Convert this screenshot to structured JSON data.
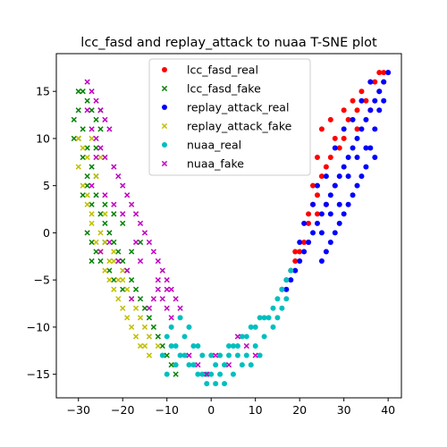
{
  "chart_data": {
    "type": "scatter",
    "title": "lcc_fasd and replay_attack to nuaa T-SNE plot",
    "xlabel": "",
    "ylabel": "",
    "xlim": [
      -35,
      43
    ],
    "ylim": [
      -17.5,
      19
    ],
    "xticks": [
      -30,
      -20,
      -10,
      0,
      10,
      20,
      30,
      40
    ],
    "yticks": [
      -15,
      -10,
      -5,
      0,
      5,
      10,
      15
    ],
    "grid": false,
    "legend_position": "top-center",
    "series": [
      {
        "name": "lcc_fasd_real",
        "color": "#ff0000",
        "marker": "circle",
        "points": [
          [
            19,
            -3
          ],
          [
            21,
            -1
          ],
          [
            22,
            2
          ],
          [
            23,
            5
          ],
          [
            24,
            8
          ],
          [
            25,
            11
          ],
          [
            27,
            12
          ],
          [
            30,
            13
          ],
          [
            32,
            14
          ],
          [
            34,
            15
          ],
          [
            36,
            16
          ],
          [
            38,
            17
          ],
          [
            39,
            17
          ],
          [
            40,
            17
          ],
          [
            33,
            11
          ],
          [
            29,
            9
          ],
          [
            26,
            7
          ],
          [
            24,
            4
          ],
          [
            22,
            1
          ],
          [
            20,
            -2
          ],
          [
            18,
            -4
          ],
          [
            17,
            -5
          ],
          [
            16,
            -6
          ],
          [
            28,
            10
          ],
          [
            31,
            12
          ],
          [
            35,
            14
          ],
          [
            37,
            16
          ],
          [
            39,
            16
          ],
          [
            23,
            3
          ],
          [
            25,
            6
          ],
          [
            27,
            8
          ],
          [
            30,
            10
          ],
          [
            22,
            -1
          ],
          [
            19,
            -2
          ],
          [
            33,
            13
          ],
          [
            36,
            13
          ],
          [
            38,
            15
          ],
          [
            26,
            3
          ],
          [
            28,
            5
          ],
          [
            24,
            2
          ]
        ]
      },
      {
        "name": "lcc_fasd_fake",
        "color": "#008000",
        "marker": "x",
        "points": [
          [
            -29,
            15
          ],
          [
            -28,
            14
          ],
          [
            -30,
            13
          ],
          [
            -31,
            12
          ],
          [
            -29,
            11
          ],
          [
            -27,
            13
          ],
          [
            -26,
            12
          ],
          [
            -25,
            11
          ],
          [
            -28,
            9
          ],
          [
            -27,
            7
          ],
          [
            -26,
            6
          ],
          [
            -28,
            5
          ],
          [
            -29,
            4
          ],
          [
            -27,
            3
          ],
          [
            -25,
            2
          ],
          [
            -24,
            1
          ],
          [
            -23,
            0
          ],
          [
            -22,
            -1
          ],
          [
            -21,
            -2
          ],
          [
            -20,
            -3
          ],
          [
            -19,
            -4
          ],
          [
            -18,
            -5
          ],
          [
            -17,
            -6
          ],
          [
            -16,
            -7
          ],
          [
            -15,
            -8
          ],
          [
            -14,
            -9
          ],
          [
            -13,
            -10
          ],
          [
            -12,
            -11
          ],
          [
            -11,
            -12
          ],
          [
            -10,
            -13
          ],
          [
            -9,
            -14
          ],
          [
            -8,
            -15
          ],
          [
            -26,
            4
          ],
          [
            -24,
            3
          ],
          [
            -22,
            2
          ],
          [
            -20,
            1
          ],
          [
            -27,
            -1
          ],
          [
            -25,
            -3
          ],
          [
            -23,
            -4
          ],
          [
            -21,
            -3
          ],
          [
            -28,
            0
          ],
          [
            -26,
            -2
          ],
          [
            -30,
            10
          ],
          [
            -29,
            8
          ],
          [
            -24,
            -1
          ],
          [
            -22,
            -5
          ],
          [
            -20,
            -6
          ],
          [
            -18,
            -2
          ],
          [
            -16,
            -1
          ],
          [
            -27,
            -3
          ],
          [
            -28,
            6
          ],
          [
            -30,
            15
          ],
          [
            -31,
            10
          ],
          [
            -25,
            13
          ],
          [
            -26,
            9
          ]
        ]
      },
      {
        "name": "replay_attack_real",
        "color": "#0000ff",
        "marker": "circle",
        "points": [
          [
            40,
            17
          ],
          [
            39,
            16
          ],
          [
            38,
            15
          ],
          [
            37,
            14
          ],
          [
            36,
            13
          ],
          [
            35,
            12
          ],
          [
            34,
            11
          ],
          [
            33,
            10
          ],
          [
            32,
            9
          ],
          [
            31,
            8
          ],
          [
            30,
            7
          ],
          [
            29,
            6
          ],
          [
            28,
            5
          ],
          [
            27,
            4
          ],
          [
            26,
            3
          ],
          [
            25,
            2
          ],
          [
            24,
            1
          ],
          [
            23,
            0
          ],
          [
            22,
            -1
          ],
          [
            21,
            -2
          ],
          [
            20,
            -3
          ],
          [
            19,
            -4
          ],
          [
            18,
            -5
          ],
          [
            17,
            -6
          ],
          [
            38,
            13
          ],
          [
            37,
            11
          ],
          [
            36,
            9
          ],
          [
            35,
            7
          ],
          [
            34,
            6
          ],
          [
            33,
            5
          ],
          [
            32,
            4
          ],
          [
            31,
            3
          ],
          [
            30,
            2
          ],
          [
            29,
            1
          ],
          [
            28,
            0
          ],
          [
            27,
            -1
          ],
          [
            26,
            -2
          ],
          [
            25,
            -3
          ],
          [
            39,
            14
          ],
          [
            36,
            16
          ],
          [
            34,
            14
          ],
          [
            32,
            12
          ],
          [
            30,
            11
          ],
          [
            28,
            9
          ],
          [
            26,
            6
          ],
          [
            24,
            5
          ],
          [
            23,
            3
          ],
          [
            21,
            1
          ],
          [
            20,
            -1
          ],
          [
            37,
            8
          ],
          [
            35,
            9
          ],
          [
            33,
            8
          ],
          [
            31,
            6
          ],
          [
            29,
            3
          ],
          [
            27,
            2
          ],
          [
            25,
            0
          ]
        ]
      },
      {
        "name": "replay_attack_fake",
        "color": "#bfbf00",
        "marker": "x",
        "points": [
          [
            -30,
            10
          ],
          [
            -29,
            9
          ],
          [
            -28,
            8
          ],
          [
            -30,
            7
          ],
          [
            -29,
            5
          ],
          [
            -28,
            3
          ],
          [
            -27,
            1
          ],
          [
            -26,
            -1
          ],
          [
            -25,
            -2
          ],
          [
            -24,
            -4
          ],
          [
            -23,
            -5
          ],
          [
            -22,
            -6
          ],
          [
            -21,
            -7
          ],
          [
            -20,
            -8
          ],
          [
            -19,
            -9
          ],
          [
            -18,
            -10
          ],
          [
            -17,
            -11
          ],
          [
            -16,
            -12
          ],
          [
            -15,
            -12
          ],
          [
            -14,
            -13
          ],
          [
            -28,
            4
          ],
          [
            -27,
            2
          ],
          [
            -25,
            0
          ],
          [
            -23,
            -3
          ],
          [
            -21,
            -5
          ],
          [
            -19,
            -6
          ],
          [
            -24,
            -1
          ],
          [
            -22,
            -3
          ],
          [
            -20,
            -4
          ],
          [
            -18,
            -7
          ],
          [
            -16,
            -9
          ],
          [
            -14,
            -11
          ],
          [
            -12,
            -12
          ],
          [
            -27,
            10
          ],
          [
            -25,
            8
          ],
          [
            -26,
            6
          ],
          [
            -24,
            2
          ],
          [
            -22,
            -2
          ],
          [
            -20,
            -5
          ],
          [
            -17,
            -8
          ],
          [
            -15,
            -10
          ]
        ]
      },
      {
        "name": "nuaa_real",
        "color": "#00bfbf",
        "marker": "circle",
        "points": [
          [
            -10,
            -11
          ],
          [
            -9,
            -12
          ],
          [
            -8,
            -12
          ],
          [
            -7,
            -13
          ],
          [
            -6,
            -13
          ],
          [
            -5,
            -14
          ],
          [
            -4,
            -14
          ],
          [
            -3,
            -15
          ],
          [
            -2,
            -15
          ],
          [
            -1,
            -15
          ],
          [
            0,
            -15
          ],
          [
            1,
            -16
          ],
          [
            2,
            -15
          ],
          [
            3,
            -14
          ],
          [
            4,
            -13
          ],
          [
            5,
            -12
          ],
          [
            6,
            -12
          ],
          [
            7,
            -11
          ],
          [
            8,
            -11
          ],
          [
            9,
            -10
          ],
          [
            10,
            -10
          ],
          [
            11,
            -9
          ],
          [
            12,
            -9
          ],
          [
            14,
            -8
          ],
          [
            15,
            -7
          ],
          [
            16,
            -6
          ],
          [
            17,
            -5
          ],
          [
            18,
            -4
          ],
          [
            -9,
            -10
          ],
          [
            -8,
            -14
          ],
          [
            -6,
            -11
          ],
          [
            -4,
            -12
          ],
          [
            -2,
            -13
          ],
          [
            0,
            -13
          ],
          [
            2,
            -13
          ],
          [
            4,
            -12
          ],
          [
            6,
            -13
          ],
          [
            8,
            -13
          ],
          [
            10,
            -12
          ],
          [
            12,
            -11
          ],
          [
            14,
            -10
          ],
          [
            -11,
            -13
          ],
          [
            -10,
            -15
          ],
          [
            -3,
            -12
          ],
          [
            1,
            -14
          ],
          [
            5,
            -15
          ],
          [
            3,
            -16
          ],
          [
            -1,
            -16
          ],
          [
            7,
            -14
          ],
          [
            9,
            -14
          ],
          [
            13,
            -9
          ],
          [
            15,
            -9
          ],
          [
            16,
            -8
          ],
          [
            17,
            -7
          ],
          [
            -7,
            -9
          ],
          [
            -5,
            -10
          ],
          [
            11,
            -13
          ]
        ]
      },
      {
        "name": "nuaa_fake",
        "color": "#bf00bf",
        "marker": "x",
        "points": [
          [
            -28,
            16
          ],
          [
            -27,
            15
          ],
          [
            -26,
            14
          ],
          [
            -25,
            13
          ],
          [
            -24,
            12
          ],
          [
            -23,
            11
          ],
          [
            -28,
            13
          ],
          [
            -27,
            11
          ],
          [
            -26,
            10
          ],
          [
            -25,
            9
          ],
          [
            -24,
            8
          ],
          [
            -22,
            7
          ],
          [
            -21,
            6
          ],
          [
            -20,
            5
          ],
          [
            -19,
            4
          ],
          [
            -18,
            3
          ],
          [
            -17,
            2
          ],
          [
            -16,
            1
          ],
          [
            -15,
            0
          ],
          [
            -14,
            -1
          ],
          [
            -13,
            -2
          ],
          [
            -12,
            -3
          ],
          [
            -11,
            -4
          ],
          [
            -10,
            -5
          ],
          [
            -9,
            -6
          ],
          [
            -8,
            -7
          ],
          [
            -7,
            -8
          ],
          [
            -12,
            -6
          ],
          [
            -11,
            -7
          ],
          [
            -10,
            -8
          ],
          [
            -9,
            -9
          ],
          [
            -13,
            -7
          ],
          [
            -14,
            -8
          ],
          [
            -12,
            -5
          ],
          [
            -10,
            -6
          ],
          [
            -25,
            -2
          ],
          [
            -23,
            -1
          ],
          [
            -21,
            -3
          ],
          [
            -19,
            -4
          ],
          [
            -17,
            -1
          ],
          [
            -16,
            -3
          ],
          [
            -18,
            -7
          ],
          [
            -5,
            -13
          ],
          [
            -3,
            -14
          ],
          [
            -1,
            -15
          ],
          [
            1,
            -13
          ],
          [
            4,
            -14
          ],
          [
            6,
            -11
          ],
          [
            8,
            -12
          ],
          [
            10,
            -13
          ],
          [
            -24,
            4
          ],
          [
            -22,
            3
          ],
          [
            -20,
            2
          ],
          [
            -26,
            8
          ],
          [
            -27,
            5
          ]
        ]
      }
    ]
  }
}
